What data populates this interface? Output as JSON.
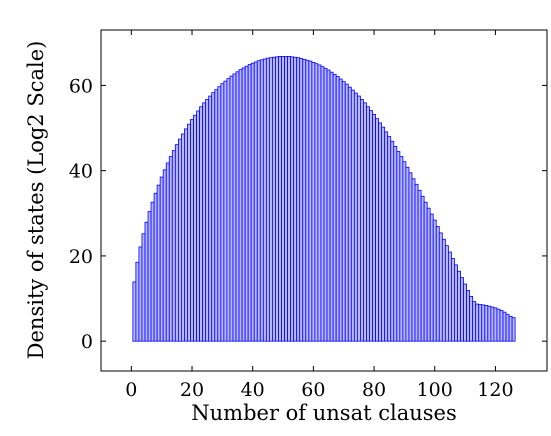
{
  "chart_data": {
    "type": "bar",
    "xlabel": "Number of unsat clauses",
    "ylabel": "Density of states (Log2 Scale)",
    "xlim": [
      -10,
      137
    ],
    "ylim": [
      -7,
      73
    ],
    "xticks": [
      0,
      20,
      40,
      60,
      80,
      100,
      120
    ],
    "yticks": [
      0,
      20,
      40,
      60
    ],
    "bar_fill": "#b8b8ff",
    "bar_stroke": "#0000ff",
    "x": [
      1,
      2,
      3,
      4,
      5,
      6,
      7,
      8,
      9,
      10,
      11,
      12,
      13,
      14,
      15,
      16,
      17,
      18,
      19,
      20,
      21,
      22,
      23,
      24,
      25,
      26,
      27,
      28,
      29,
      30,
      31,
      32,
      33,
      34,
      35,
      36,
      37,
      38,
      39,
      40,
      41,
      42,
      43,
      44,
      45,
      46,
      47,
      48,
      49,
      50,
      51,
      52,
      53,
      54,
      55,
      56,
      57,
      58,
      59,
      60,
      61,
      62,
      63,
      64,
      65,
      66,
      67,
      68,
      69,
      70,
      71,
      72,
      73,
      74,
      75,
      76,
      77,
      78,
      79,
      80,
      81,
      82,
      83,
      84,
      85,
      86,
      87,
      88,
      89,
      90,
      91,
      92,
      93,
      94,
      95,
      96,
      97,
      98,
      99,
      100,
      101,
      102,
      103,
      104,
      105,
      106,
      107,
      108,
      109,
      110,
      111,
      112,
      113,
      114,
      115,
      116,
      117,
      118,
      119,
      120,
      121,
      122,
      123,
      124,
      125,
      126
    ],
    "values": [
      13.9,
      18.5,
      22.1,
      25.2,
      27.9,
      30.4,
      32.6,
      34.7,
      36.6,
      38.5,
      40.2,
      41.8,
      43.3,
      44.7,
      46.1,
      47.4,
      48.6,
      49.8,
      50.9,
      52.0,
      53.0,
      54.0,
      55.0,
      55.9,
      56.7,
      57.5,
      58.3,
      59.0,
      59.7,
      60.4,
      61.0,
      61.6,
      62.2,
      62.7,
      63.2,
      63.7,
      64.1,
      64.5,
      64.9,
      65.2,
      65.5,
      65.8,
      66.0,
      66.2,
      66.4,
      66.5,
      66.6,
      66.7,
      66.8,
      66.8,
      66.8,
      66.8,
      66.7,
      66.6,
      66.5,
      66.3,
      66.1,
      65.9,
      65.7,
      65.4,
      65.1,
      64.8,
      64.4,
      64.0,
      63.6,
      63.1,
      62.6,
      62.1,
      61.5,
      60.9,
      60.3,
      59.6,
      58.9,
      58.2,
      57.5,
      56.7,
      55.9,
      55.0,
      54.1,
      53.2,
      52.2,
      51.2,
      50.2,
      49.1,
      48.0,
      46.9,
      45.7,
      44.5,
      43.3,
      42.1,
      40.8,
      39.5,
      38.1,
      36.8,
      35.4,
      34.0,
      32.6,
      31.2,
      29.8,
      28.4,
      26.9,
      25.4,
      23.9,
      22.4,
      20.9,
      19.4,
      17.9,
      16.4,
      14.9,
      13.4,
      11.9,
      10.5,
      9.3,
      8.7,
      8.6,
      8.5,
      8.4,
      8.2,
      8.0,
      7.8,
      7.5,
      7.2,
      6.8,
      6.3,
      5.8,
      5.5
    ]
  }
}
